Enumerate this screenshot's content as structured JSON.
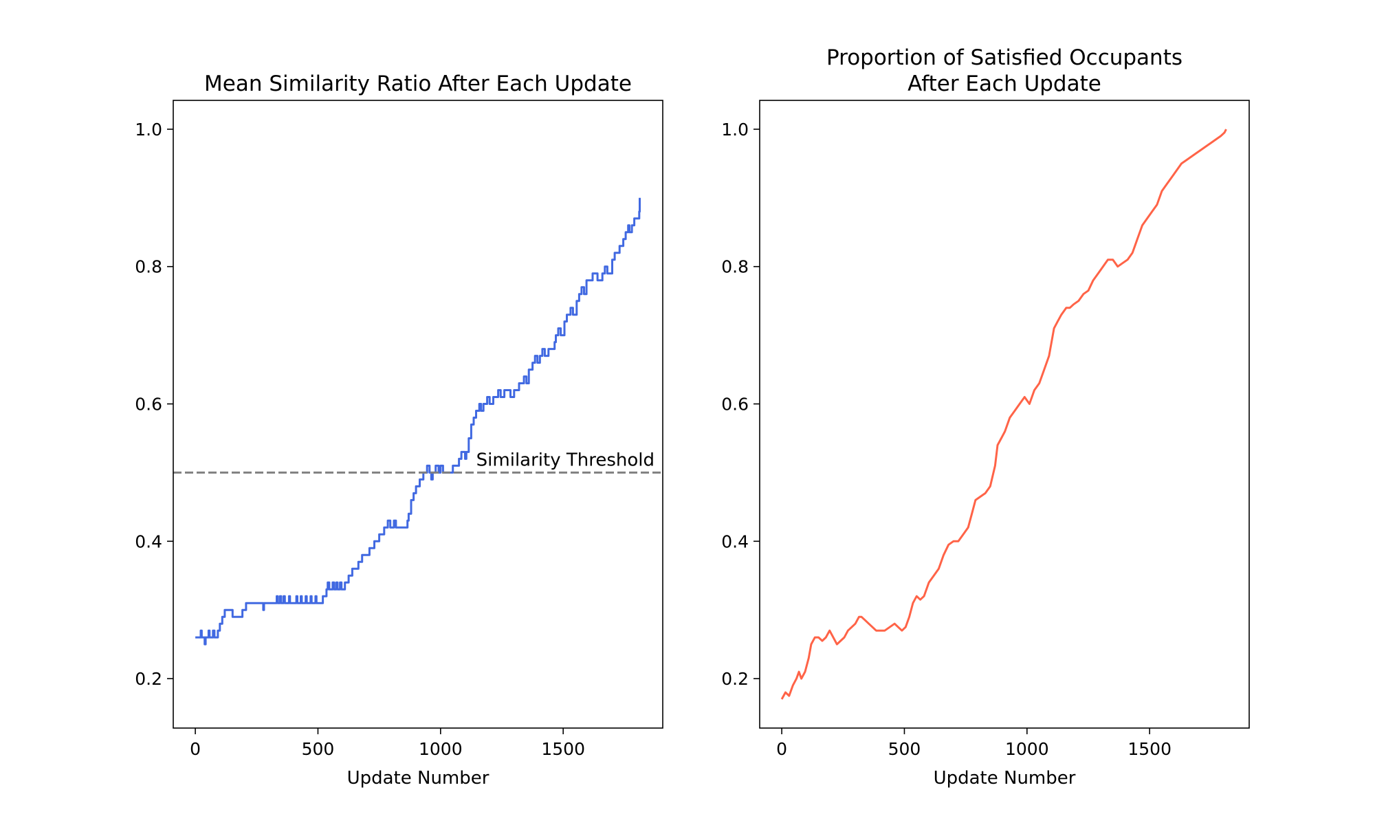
{
  "chart_data": [
    {
      "type": "line",
      "title": [
        "Mean Similarity Ratio After Each Update"
      ],
      "xlabel": "Update Number",
      "ylabel": "",
      "xlim": [
        -90,
        1906
      ],
      "ylim": [
        0.128,
        1.042
      ],
      "xticks": [
        0,
        500,
        1000,
        1500
      ],
      "yticks": [
        0.2,
        0.4,
        0.6,
        0.8,
        1.0
      ],
      "grid": false,
      "color": "#4169e1",
      "threshold": {
        "y": 0.5,
        "label": "Similarity Threshold",
        "color": "#808080",
        "style": "dashed"
      },
      "series": [
        {
          "step": true,
          "points": [
            [
              0,
              0.26
            ],
            [
              20,
              0.26
            ],
            [
              22,
              0.27
            ],
            [
              26,
              0.26
            ],
            [
              36,
              0.26
            ],
            [
              38,
              0.25
            ],
            [
              42,
              0.26
            ],
            [
              52,
              0.26
            ],
            [
              54,
              0.27
            ],
            [
              58,
              0.26
            ],
            [
              70,
              0.26
            ],
            [
              72,
              0.27
            ],
            [
              78,
              0.26
            ],
            [
              90,
              0.26
            ],
            [
              92,
              0.27
            ],
            [
              100,
              0.28
            ],
            [
              110,
              0.29
            ],
            [
              120,
              0.3
            ],
            [
              150,
              0.3
            ],
            [
              152,
              0.29
            ],
            [
              190,
              0.29
            ],
            [
              192,
              0.3
            ],
            [
              205,
              0.3
            ],
            [
              207,
              0.31
            ],
            [
              275,
              0.31
            ],
            [
              277,
              0.3
            ],
            [
              280,
              0.31
            ],
            [
              330,
              0.31
            ],
            [
              332,
              0.32
            ],
            [
              336,
              0.31
            ],
            [
              345,
              0.32
            ],
            [
              350,
              0.31
            ],
            [
              360,
              0.32
            ],
            [
              365,
              0.31
            ],
            [
              380,
              0.31
            ],
            [
              382,
              0.32
            ],
            [
              386,
              0.31
            ],
            [
              410,
              0.31
            ],
            [
              412,
              0.32
            ],
            [
              416,
              0.31
            ],
            [
              430,
              0.32
            ],
            [
              434,
              0.31
            ],
            [
              450,
              0.32
            ],
            [
              454,
              0.31
            ],
            [
              470,
              0.32
            ],
            [
              474,
              0.31
            ],
            [
              490,
              0.32
            ],
            [
              494,
              0.31
            ],
            [
              520,
              0.32
            ],
            [
              535,
              0.33
            ],
            [
              540,
              0.34
            ],
            [
              546,
              0.33
            ],
            [
              560,
              0.34
            ],
            [
              566,
              0.33
            ],
            [
              575,
              0.34
            ],
            [
              580,
              0.33
            ],
            [
              590,
              0.34
            ],
            [
              596,
              0.33
            ],
            [
              610,
              0.34
            ],
            [
              625,
              0.35
            ],
            [
              640,
              0.36
            ],
            [
              665,
              0.37
            ],
            [
              680,
              0.38
            ],
            [
              710,
              0.39
            ],
            [
              730,
              0.4
            ],
            [
              750,
              0.41
            ],
            [
              770,
              0.42
            ],
            [
              785,
              0.43
            ],
            [
              795,
              0.42
            ],
            [
              810,
              0.43
            ],
            [
              818,
              0.42
            ],
            [
              850,
              0.42
            ],
            [
              865,
              0.43
            ],
            [
              870,
              0.44
            ],
            [
              880,
              0.46
            ],
            [
              890,
              0.47
            ],
            [
              900,
              0.48
            ],
            [
              915,
              0.49
            ],
            [
              930,
              0.5
            ],
            [
              945,
              0.51
            ],
            [
              955,
              0.5
            ],
            [
              962,
              0.49
            ],
            [
              968,
              0.5
            ],
            [
              980,
              0.51
            ],
            [
              992,
              0.5
            ],
            [
              1000,
              0.51
            ],
            [
              1010,
              0.5
            ],
            [
              1030,
              0.5
            ],
            [
              1050,
              0.51
            ],
            [
              1075,
              0.52
            ],
            [
              1085,
              0.53
            ],
            [
              1100,
              0.52
            ],
            [
              1105,
              0.53
            ],
            [
              1115,
              0.55
            ],
            [
              1125,
              0.57
            ],
            [
              1135,
              0.58
            ],
            [
              1145,
              0.59
            ],
            [
              1158,
              0.6
            ],
            [
              1165,
              0.59
            ],
            [
              1175,
              0.6
            ],
            [
              1190,
              0.61
            ],
            [
              1200,
              0.6
            ],
            [
              1215,
              0.61
            ],
            [
              1235,
              0.62
            ],
            [
              1245,
              0.61
            ],
            [
              1260,
              0.62
            ],
            [
              1285,
              0.61
            ],
            [
              1300,
              0.62
            ],
            [
              1320,
              0.63
            ],
            [
              1340,
              0.64
            ],
            [
              1350,
              0.63
            ],
            [
              1360,
              0.65
            ],
            [
              1375,
              0.66
            ],
            [
              1385,
              0.67
            ],
            [
              1395,
              0.66
            ],
            [
              1405,
              0.67
            ],
            [
              1415,
              0.68
            ],
            [
              1425,
              0.67
            ],
            [
              1440,
              0.68
            ],
            [
              1465,
              0.69
            ],
            [
              1470,
              0.7
            ],
            [
              1480,
              0.71
            ],
            [
              1490,
              0.7
            ],
            [
              1505,
              0.72
            ],
            [
              1515,
              0.73
            ],
            [
              1530,
              0.74
            ],
            [
              1540,
              0.73
            ],
            [
              1555,
              0.75
            ],
            [
              1565,
              0.76
            ],
            [
              1575,
              0.77
            ],
            [
              1585,
              0.76
            ],
            [
              1595,
              0.78
            ],
            [
              1620,
              0.79
            ],
            [
              1640,
              0.78
            ],
            [
              1660,
              0.79
            ],
            [
              1670,
              0.8
            ],
            [
              1680,
              0.79
            ],
            [
              1700,
              0.81
            ],
            [
              1710,
              0.82
            ],
            [
              1730,
              0.83
            ],
            [
              1745,
              0.84
            ],
            [
              1755,
              0.85
            ],
            [
              1765,
              0.86
            ],
            [
              1770,
              0.85
            ],
            [
              1780,
              0.86
            ],
            [
              1790,
              0.87
            ],
            [
              1800,
              0.87
            ],
            [
              1810,
              0.88
            ],
            [
              1812,
              0.9
            ]
          ]
        }
      ]
    },
    {
      "type": "line",
      "title": [
        "Proportion of Satisfied Occupants",
        "After Each Update"
      ],
      "xlabel": "Update Number",
      "ylabel": "",
      "xlim": [
        -90,
        1906
      ],
      "ylim": [
        0.128,
        1.042
      ],
      "xticks": [
        0,
        500,
        1000,
        1500
      ],
      "yticks": [
        0.2,
        0.4,
        0.6,
        0.8,
        1.0
      ],
      "grid": false,
      "color": "#ff6347",
      "series": [
        {
          "step": false,
          "points": [
            [
              0,
              0.17
            ],
            [
              15,
              0.18
            ],
            [
              30,
              0.175
            ],
            [
              45,
              0.19
            ],
            [
              60,
              0.2
            ],
            [
              70,
              0.21
            ],
            [
              80,
              0.2
            ],
            [
              95,
              0.21
            ],
            [
              110,
              0.23
            ],
            [
              120,
              0.25
            ],
            [
              135,
              0.26
            ],
            [
              150,
              0.26
            ],
            [
              165,
              0.255
            ],
            [
              180,
              0.26
            ],
            [
              195,
              0.27
            ],
            [
              210,
              0.26
            ],
            [
              225,
              0.25
            ],
            [
              240,
              0.255
            ],
            [
              255,
              0.26
            ],
            [
              270,
              0.27
            ],
            [
              285,
              0.275
            ],
            [
              300,
              0.28
            ],
            [
              315,
              0.29
            ],
            [
              325,
              0.29
            ],
            [
              340,
              0.285
            ],
            [
              355,
              0.28
            ],
            [
              370,
              0.275
            ],
            [
              385,
              0.27
            ],
            [
              400,
              0.27
            ],
            [
              420,
              0.27
            ],
            [
              440,
              0.275
            ],
            [
              460,
              0.28
            ],
            [
              475,
              0.275
            ],
            [
              490,
              0.27
            ],
            [
              505,
              0.275
            ],
            [
              520,
              0.29
            ],
            [
              535,
              0.31
            ],
            [
              550,
              0.32
            ],
            [
              565,
              0.315
            ],
            [
              580,
              0.32
            ],
            [
              600,
              0.34
            ],
            [
              620,
              0.35
            ],
            [
              640,
              0.36
            ],
            [
              660,
              0.38
            ],
            [
              680,
              0.395
            ],
            [
              700,
              0.4
            ],
            [
              720,
              0.4
            ],
            [
              740,
              0.41
            ],
            [
              760,
              0.42
            ],
            [
              775,
              0.44
            ],
            [
              790,
              0.46
            ],
            [
              810,
              0.465
            ],
            [
              830,
              0.47
            ],
            [
              850,
              0.48
            ],
            [
              870,
              0.51
            ],
            [
              880,
              0.54
            ],
            [
              895,
              0.55
            ],
            [
              910,
              0.56
            ],
            [
              930,
              0.58
            ],
            [
              950,
              0.59
            ],
            [
              970,
              0.6
            ],
            [
              990,
              0.61
            ],
            [
              1010,
              0.6
            ],
            [
              1030,
              0.62
            ],
            [
              1050,
              0.63
            ],
            [
              1070,
              0.65
            ],
            [
              1090,
              0.67
            ],
            [
              1100,
              0.69
            ],
            [
              1110,
              0.71
            ],
            [
              1125,
              0.72
            ],
            [
              1140,
              0.73
            ],
            [
              1160,
              0.74
            ],
            [
              1175,
              0.74
            ],
            [
              1190,
              0.745
            ],
            [
              1210,
              0.75
            ],
            [
              1230,
              0.76
            ],
            [
              1250,
              0.765
            ],
            [
              1270,
              0.78
            ],
            [
              1290,
              0.79
            ],
            [
              1310,
              0.8
            ],
            [
              1330,
              0.81
            ],
            [
              1350,
              0.81
            ],
            [
              1370,
              0.8
            ],
            [
              1390,
              0.805
            ],
            [
              1410,
              0.81
            ],
            [
              1430,
              0.82
            ],
            [
              1450,
              0.84
            ],
            [
              1470,
              0.86
            ],
            [
              1490,
              0.87
            ],
            [
              1510,
              0.88
            ],
            [
              1530,
              0.89
            ],
            [
              1550,
              0.91
            ],
            [
              1570,
              0.92
            ],
            [
              1590,
              0.93
            ],
            [
              1610,
              0.94
            ],
            [
              1630,
              0.95
            ],
            [
              1650,
              0.955
            ],
            [
              1670,
              0.96
            ],
            [
              1690,
              0.965
            ],
            [
              1710,
              0.97
            ],
            [
              1730,
              0.975
            ],
            [
              1750,
              0.98
            ],
            [
              1770,
              0.985
            ],
            [
              1790,
              0.99
            ],
            [
              1805,
              0.995
            ],
            [
              1812,
              1.0
            ]
          ]
        }
      ]
    }
  ]
}
